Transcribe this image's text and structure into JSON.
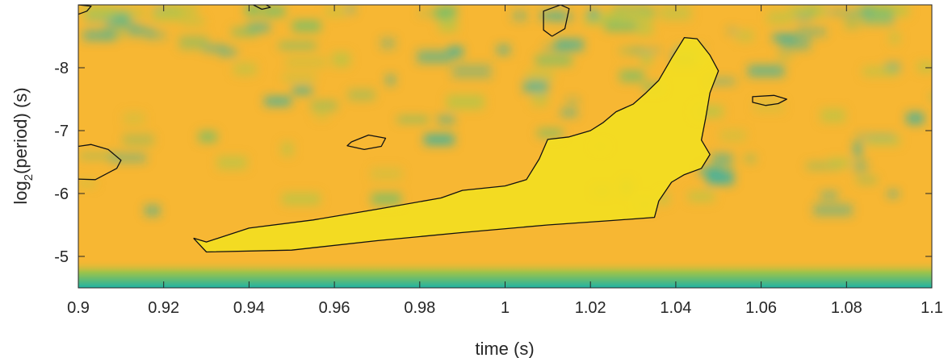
{
  "chart_data": {
    "type": "heatmap",
    "title": "",
    "xlabel": "time (s)",
    "ylabel": {
      "prefix": "log",
      "subscript": "2",
      "suffix": "(period) (s)"
    },
    "xlim": [
      0.9,
      1.1
    ],
    "ylim": [
      -4.5,
      -9.0
    ],
    "y_axis_direction": "reversed (more negative at top)",
    "x_ticks": [
      0.9,
      0.92,
      0.94,
      0.96,
      0.98,
      1.0,
      1.02,
      1.04,
      1.06,
      1.08,
      1.1
    ],
    "x_tick_labels": [
      "0.9",
      "0.92",
      "0.94",
      "0.96",
      "0.98",
      "1",
      "1.02",
      "1.04",
      "1.06",
      "1.08",
      "1.1"
    ],
    "y_ticks": [
      -5,
      -6,
      -7,
      -8
    ],
    "y_tick_labels": [
      "-5",
      "-6",
      "-7",
      "-8"
    ],
    "colormap": [
      "#1fb3a4",
      "#7fc25a",
      "#f7b733",
      "#f5e61c"
    ],
    "background_color": "#f7b733",
    "grid": false,
    "legend": "none",
    "contour_level": "significance (black outline)",
    "contours": [
      {
        "name": "main ridge",
        "points": [
          [
            0.927,
            -5.29
          ],
          [
            0.93,
            -5.23
          ],
          [
            0.94,
            -5.45
          ],
          [
            0.955,
            -5.58
          ],
          [
            0.97,
            -5.75
          ],
          [
            0.985,
            -5.93
          ],
          [
            0.99,
            -6.05
          ],
          [
            1.0,
            -6.12
          ],
          [
            1.005,
            -6.22
          ],
          [
            1.008,
            -6.55
          ],
          [
            1.01,
            -6.86
          ],
          [
            1.015,
            -6.9
          ],
          [
            1.02,
            -7.0
          ],
          [
            1.023,
            -7.13
          ],
          [
            1.026,
            -7.3
          ],
          [
            1.03,
            -7.42
          ],
          [
            1.033,
            -7.6
          ],
          [
            1.036,
            -7.8
          ],
          [
            1.039,
            -8.15
          ],
          [
            1.042,
            -8.48
          ],
          [
            1.045,
            -8.46
          ],
          [
            1.048,
            -8.2
          ],
          [
            1.05,
            -7.95
          ],
          [
            1.048,
            -7.6
          ],
          [
            1.047,
            -7.2
          ],
          [
            1.046,
            -6.85
          ],
          [
            1.048,
            -6.62
          ],
          [
            1.046,
            -6.4
          ],
          [
            1.042,
            -6.3
          ],
          [
            1.039,
            -6.18
          ],
          [
            1.036,
            -5.88
          ],
          [
            1.035,
            -5.62
          ],
          [
            1.025,
            -5.57
          ],
          [
            1.01,
            -5.5
          ],
          [
            0.99,
            -5.38
          ],
          [
            0.97,
            -5.25
          ],
          [
            0.95,
            -5.1
          ],
          [
            0.93,
            -5.07
          ],
          [
            0.927,
            -5.29
          ]
        ]
      },
      {
        "name": "left blob",
        "points": [
          [
            0.9,
            -6.23
          ],
          [
            0.904,
            -6.22
          ],
          [
            0.909,
            -6.4
          ],
          [
            0.91,
            -6.53
          ],
          [
            0.907,
            -6.7
          ],
          [
            0.903,
            -6.78
          ],
          [
            0.9,
            -6.75
          ]
        ]
      },
      {
        "name": "small loop mid",
        "points": [
          [
            0.964,
            -6.82
          ],
          [
            0.968,
            -6.93
          ],
          [
            0.972,
            -6.88
          ],
          [
            0.971,
            -6.75
          ],
          [
            0.967,
            -6.7
          ],
          [
            0.963,
            -6.76
          ],
          [
            0.964,
            -6.82
          ]
        ]
      },
      {
        "name": "small loop upper",
        "points": [
          [
            1.011,
            -8.5
          ],
          [
            1.014,
            -8.62
          ],
          [
            1.015,
            -8.94
          ],
          [
            1.013,
            -9.0
          ],
          [
            1.009,
            -8.9
          ],
          [
            1.009,
            -8.6
          ],
          [
            1.011,
            -8.5
          ]
        ]
      },
      {
        "name": "right loop",
        "points": [
          [
            1.061,
            -7.4
          ],
          [
            1.064,
            -7.43
          ],
          [
            1.066,
            -7.5
          ],
          [
            1.063,
            -7.56
          ],
          [
            1.058,
            -7.54
          ],
          [
            1.058,
            -7.45
          ],
          [
            1.061,
            -7.4
          ]
        ]
      },
      {
        "name": "corner blip top-left",
        "points": [
          [
            0.9,
            -8.85
          ],
          [
            0.902,
            -8.9
          ],
          [
            0.903,
            -8.98
          ],
          [
            0.9,
            -9.0
          ]
        ]
      },
      {
        "name": "tiny blip top",
        "points": [
          [
            0.941,
            -9.0
          ],
          [
            0.943,
            -8.93
          ],
          [
            0.945,
            -8.96
          ],
          [
            0.944,
            -9.0
          ]
        ]
      }
    ]
  }
}
